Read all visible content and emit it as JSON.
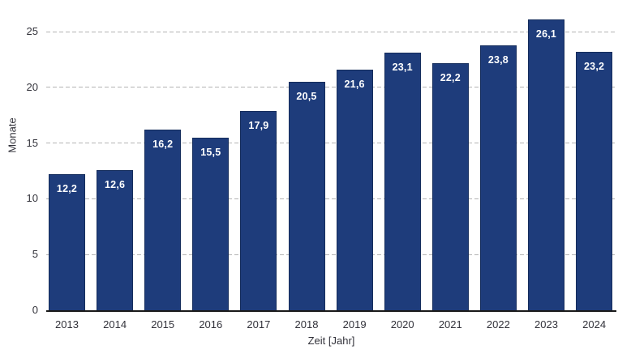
{
  "chart_data": {
    "type": "bar",
    "title": "",
    "categories": [
      "2013",
      "2014",
      "2015",
      "2016",
      "2017",
      "2018",
      "2019",
      "2020",
      "2021",
      "2022",
      "2023",
      "2024"
    ],
    "values": [
      12.2,
      12.6,
      16.2,
      15.5,
      17.9,
      20.5,
      21.6,
      23.1,
      22.2,
      23.8,
      26.1,
      23.2
    ],
    "value_labels": [
      "12,2",
      "12,6",
      "16,2",
      "15,5",
      "17,9",
      "20,5",
      "21,6",
      "23,1",
      "22,2",
      "23,8",
      "26,1",
      "23,2"
    ],
    "xlabel": "Zeit [Jahr]",
    "ylabel": "Monate",
    "ylim": [
      0,
      25
    ],
    "yticks": [
      0,
      5,
      10,
      15,
      20,
      25
    ],
    "grid": "horizontal-dashed",
    "legend": "none",
    "data_label_position": "inside-top",
    "decimal_separator": ",",
    "colors": {
      "bar_fill": "#1e3c7b",
      "bar_border": "#152d5c",
      "gridline": "#b3b3b3",
      "axis_line": "#1a1a1a",
      "tick_text": "#32323a",
      "data_label_text": "#ffffff",
      "background": "#ffffff"
    }
  }
}
